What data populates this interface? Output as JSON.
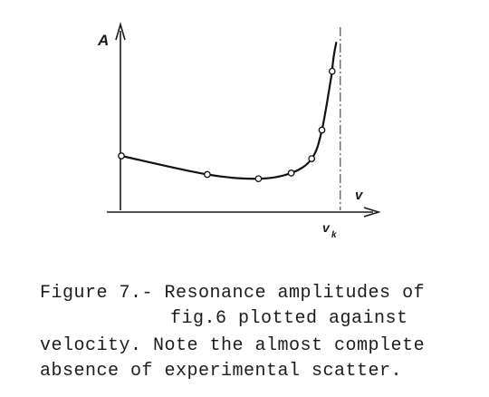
{
  "chart_data": {
    "type": "line",
    "axis_labels": {
      "y": "A",
      "x": "v",
      "x_marker_main": "v",
      "x_marker_sub": "k"
    },
    "series": [
      {
        "points": [
          [
            0.0,
            0.38
          ],
          [
            0.42,
            0.25
          ],
          [
            0.67,
            0.22
          ],
          [
            0.83,
            0.26
          ],
          [
            0.93,
            0.36
          ],
          [
            0.98,
            0.56
          ],
          [
            1.03,
            0.97
          ]
        ],
        "curve_tail": [
          1.05,
          1.17
        ]
      }
    ],
    "asymptote_x": 1.07,
    "marker_style": "open-circle",
    "grid": false,
    "legend": false
  },
  "caption": {
    "line1": "Figure 7.- Resonance amplitudes of",
    "line2": "fig.6 plotted against",
    "line3": "velocity. Note the almost complete",
    "line4": "absence of experimental scatter."
  }
}
